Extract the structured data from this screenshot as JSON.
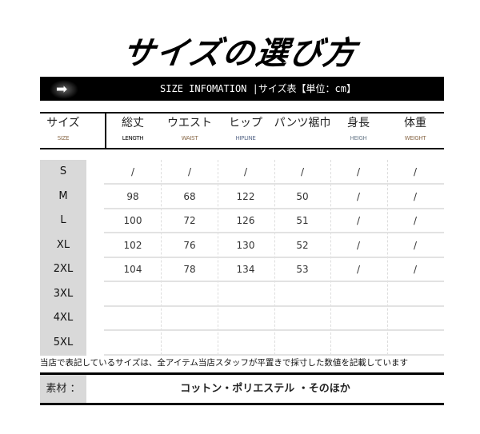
{
  "title": "サイズの選び方",
  "banner": {
    "icon": "arrow-right-icon",
    "text": "SIZE INFOMATION |サイズ表【単位：cm】"
  },
  "headers": [
    {
      "jp": "サイズ",
      "en": "SIZE",
      "color": "#8a6a4a"
    },
    {
      "jp": "総丈",
      "en": "LENGTH",
      "color": "#000000"
    },
    {
      "jp": "ウエスト",
      "en": "WAIST",
      "color": "#8a6a4a"
    },
    {
      "jp": "ヒップ",
      "en": "HIPLINE",
      "color": "#5a6a8a"
    },
    {
      "jp": "パンツ裾巾",
      "en": "",
      "color": "#555555"
    },
    {
      "jp": "身長",
      "en": "HEIGH",
      "color": "#6a7a8a"
    },
    {
      "jp": "体重",
      "en": "WEIGHT",
      "color": "#8a6a4a"
    }
  ],
  "rows": [
    {
      "size": "S",
      "values": [
        "/",
        "/",
        "/",
        "/",
        "/",
        "/"
      ]
    },
    {
      "size": "M",
      "values": [
        "98",
        "68",
        "122",
        "50",
        "/",
        "/"
      ]
    },
    {
      "size": "L",
      "values": [
        "100",
        "72",
        "126",
        "51",
        "/",
        "/"
      ]
    },
    {
      "size": "XL",
      "values": [
        "102",
        "76",
        "130",
        "52",
        "/",
        "/"
      ]
    },
    {
      "size": "2XL",
      "values": [
        "104",
        "78",
        "134",
        "53",
        "/",
        "/"
      ]
    },
    {
      "size": "3XL",
      "values": [
        "",
        "",
        "",
        "",
        "",
        ""
      ]
    },
    {
      "size": "4XL",
      "values": [
        "",
        "",
        "",
        "",
        "",
        ""
      ]
    },
    {
      "size": "5XL",
      "values": [
        "",
        "",
        "",
        "",
        "",
        ""
      ]
    }
  ],
  "note": "当店で表記しているサイズは、全アイテム当店スタッフが平置きで採寸した数値を記載しています",
  "material": {
    "label": "素材 ：",
    "value": "コットン・ポリエステル ・そのほか"
  }
}
